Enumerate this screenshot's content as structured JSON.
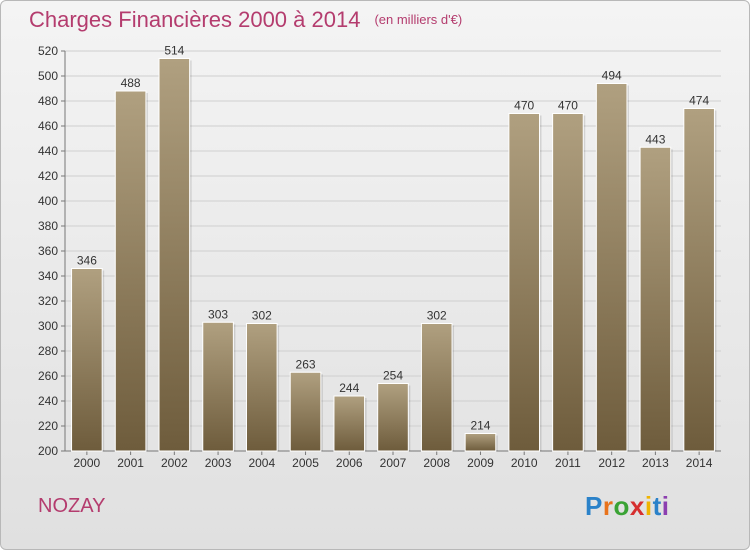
{
  "header": {
    "title": "Charges Financières 2000 à 2014",
    "unit": "(en milliers d'€)"
  },
  "footer": {
    "place": "NOZAY",
    "logo": [
      "P",
      "r",
      "o",
      "x",
      "i",
      "t",
      "i"
    ]
  },
  "colors": {
    "title": "#b43c6e",
    "bar_top": "#b0a080",
    "bar_bottom": "#6e5c3c",
    "logo": [
      "#2b82c9",
      "#e8731c",
      "#3aa335",
      "#d62f2f",
      "#f0b400",
      "#2b82c9",
      "#8c3fb0"
    ]
  },
  "chart_data": {
    "type": "bar",
    "categories": [
      "2000",
      "2001",
      "2002",
      "2003",
      "2004",
      "2005",
      "2006",
      "2007",
      "2008",
      "2009",
      "2010",
      "2011",
      "2012",
      "2013",
      "2014"
    ],
    "values": [
      346,
      488,
      514,
      303,
      302,
      263,
      244,
      254,
      302,
      214,
      470,
      470,
      494,
      443,
      474
    ],
    "ylim": [
      200,
      520
    ],
    "yticks": [
      200,
      220,
      240,
      260,
      280,
      300,
      320,
      340,
      360,
      380,
      400,
      420,
      440,
      460,
      480,
      500,
      520
    ],
    "grid": true,
    "xlabel": "",
    "ylabel": ""
  }
}
